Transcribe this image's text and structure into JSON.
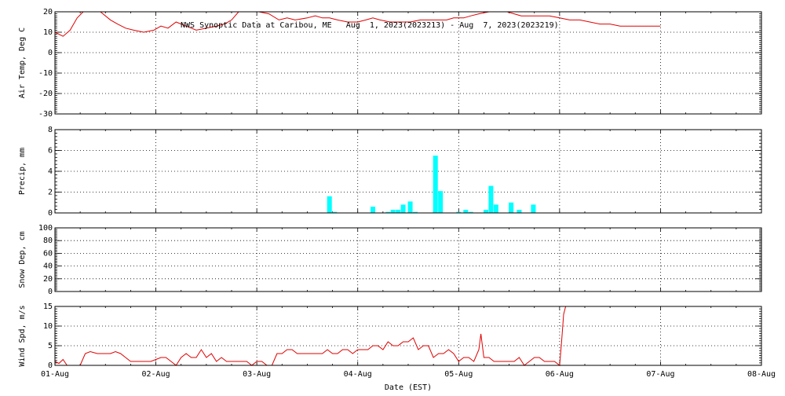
{
  "title": "NWS Synoptic Data at Caribou, ME   Aug  1, 2023(2023213) - Aug  7, 2023(2023219)",
  "xlabel": "Date (EST)",
  "colors": {
    "line": "#e00000",
    "bars": "#00ffff",
    "axes": "#000000"
  },
  "chart_data": [
    {
      "type": "line",
      "ylabel": "Air Temp, Deg C",
      "ylim": [
        -30,
        20
      ],
      "yticks": [
        "20",
        "10",
        "0",
        "-10",
        "-20",
        "-30"
      ],
      "xticks": [
        "01-Aug",
        "02-Aug",
        "03-Aug",
        "04-Aug",
        "05-Aug",
        "06-Aug",
        "07-Aug",
        "08-Aug"
      ],
      "xlim": [
        0,
        7
      ],
      "grid": true,
      "series": [
        {
          "x": [
            0,
            0.08,
            0.15,
            0.22,
            0.28,
            0.35,
            0.45,
            0.55,
            0.62,
            0.7,
            0.78,
            0.88,
            0.98,
            1.05,
            1.12,
            1.2,
            1.3,
            1.4,
            1.5,
            1.6,
            1.68,
            1.75,
            1.82,
            1.88,
            1.95,
            2.02,
            2.12,
            2.22,
            2.3,
            2.38,
            2.5,
            2.58,
            2.65,
            2.72,
            2.8,
            2.9,
            3.0,
            3.08,
            3.15,
            3.22,
            3.32,
            3.42,
            3.52,
            3.62,
            3.72,
            3.8,
            3.88,
            3.95,
            4.05,
            4.12,
            4.2,
            4.3,
            4.4,
            4.48,
            4.55,
            4.62,
            4.7,
            4.8,
            4.9,
            5.0,
            5.1,
            5.2,
            5.3,
            5.4,
            5.5,
            5.6,
            5.7,
            5.85,
            6.0
          ],
          "y": [
            10,
            8,
            11,
            17,
            20,
            20,
            20,
            16,
            14,
            12,
            11,
            10,
            11,
            13,
            12,
            15,
            13,
            11,
            12,
            13,
            14,
            16,
            20,
            22,
            23,
            22,
            19,
            16,
            17,
            16,
            17,
            18,
            17,
            17,
            16,
            15,
            15,
            16,
            17,
            16,
            15,
            15,
            15,
            16,
            16,
            16,
            16,
            17,
            17,
            18,
            19,
            20,
            21,
            20,
            19,
            18,
            18,
            18,
            18,
            17,
            16,
            16,
            15,
            14,
            14,
            13,
            13,
            13,
            13
          ]
        }
      ]
    },
    {
      "type": "bar",
      "ylabel": "Precip, mm",
      "ylim": [
        0,
        8
      ],
      "yticks": [
        "8",
        "6",
        "4",
        "2",
        "0"
      ],
      "xlim": [
        0,
        7
      ],
      "grid": true,
      "bars": [
        {
          "x": 2.72,
          "value": 1.6
        },
        {
          "x": 2.77,
          "value": 0.1
        },
        {
          "x": 3.15,
          "value": 0.6
        },
        {
          "x": 3.3,
          "value": 0.1
        },
        {
          "x": 3.35,
          "value": 0.3
        },
        {
          "x": 3.4,
          "value": 0.3
        },
        {
          "x": 3.45,
          "value": 0.8
        },
        {
          "x": 3.52,
          "value": 1.1
        },
        {
          "x": 3.57,
          "value": 0.1
        },
        {
          "x": 3.77,
          "value": 5.5
        },
        {
          "x": 3.82,
          "value": 2.1
        },
        {
          "x": 4.0,
          "value": 0.1
        },
        {
          "x": 4.07,
          "value": 0.3
        },
        {
          "x": 4.12,
          "value": 0.1
        },
        {
          "x": 4.27,
          "value": 0.3
        },
        {
          "x": 4.32,
          "value": 2.6
        },
        {
          "x": 4.37,
          "value": 0.8
        },
        {
          "x": 4.52,
          "value": 1.0
        },
        {
          "x": 4.6,
          "value": 0.3
        },
        {
          "x": 4.74,
          "value": 0.8
        }
      ]
    },
    {
      "type": "line",
      "ylabel": "Snow Dep, cm",
      "ylim": [
        0,
        100
      ],
      "yticks": [
        "100",
        "80",
        "60",
        "40",
        "20",
        "0"
      ],
      "xlim": [
        0,
        7
      ],
      "grid": true,
      "series": []
    },
    {
      "type": "line",
      "ylabel": "Wind Spd, m/s",
      "ylim": [
        0,
        15
      ],
      "yticks": [
        "15",
        "10",
        "5",
        "0"
      ],
      "xlim": [
        0,
        7
      ],
      "grid": true,
      "series": [
        {
          "x": [
            0,
            0.04,
            0.08,
            0.12,
            0.18,
            0.25,
            0.3,
            0.35,
            0.42,
            0.5,
            0.55,
            0.6,
            0.65,
            0.7,
            0.75,
            0.8,
            0.88,
            0.95,
            1.0,
            1.05,
            1.1,
            1.15,
            1.2,
            1.25,
            1.3,
            1.35,
            1.4,
            1.45,
            1.5,
            1.55,
            1.6,
            1.65,
            1.7,
            1.75,
            1.8,
            1.85,
            1.9,
            1.95,
            2.0,
            2.05,
            2.1,
            2.15,
            2.2,
            2.25,
            2.3,
            2.35,
            2.4,
            2.45,
            2.5,
            2.55,
            2.6,
            2.65,
            2.7,
            2.75,
            2.8,
            2.85,
            2.9,
            2.95,
            3.0,
            3.05,
            3.1,
            3.15,
            3.2,
            3.25,
            3.3,
            3.35,
            3.4,
            3.45,
            3.5,
            3.55,
            3.6,
            3.65,
            3.7,
            3.75,
            3.8,
            3.85,
            3.9,
            3.95,
            4.0,
            4.05,
            4.1,
            4.15,
            4.2,
            4.22,
            4.25,
            4.3,
            4.35,
            4.4,
            4.45,
            4.5,
            4.55,
            4.6,
            4.65,
            4.7,
            4.75,
            4.8,
            4.85,
            4.9,
            4.95,
            5.0,
            5.02,
            5.04,
            5.06
          ],
          "y": [
            1,
            0.5,
            1.5,
            0,
            0,
            0,
            3,
            3.5,
            3,
            3,
            3,
            3.5,
            3,
            2,
            1,
            1,
            1,
            1,
            1.5,
            2,
            2,
            1,
            0,
            2,
            3,
            2,
            2,
            4,
            2,
            3,
            1,
            2,
            1,
            1,
            1,
            1,
            1,
            0,
            1,
            1,
            0,
            0,
            3,
            3,
            4,
            4,
            3,
            3,
            3,
            3,
            3,
            3,
            4,
            3,
            3,
            4,
            4,
            3,
            4,
            4,
            4,
            5,
            5,
            4,
            6,
            5,
            5,
            6,
            6,
            7,
            4,
            5,
            5,
            2,
            3,
            3,
            4,
            3,
            1,
            2,
            2,
            1,
            4,
            8,
            2,
            2,
            1,
            1,
            1,
            1,
            1,
            2,
            0,
            1,
            2,
            2,
            1,
            1,
            1,
            0,
            6,
            13,
            15
          ]
        }
      ]
    }
  ]
}
